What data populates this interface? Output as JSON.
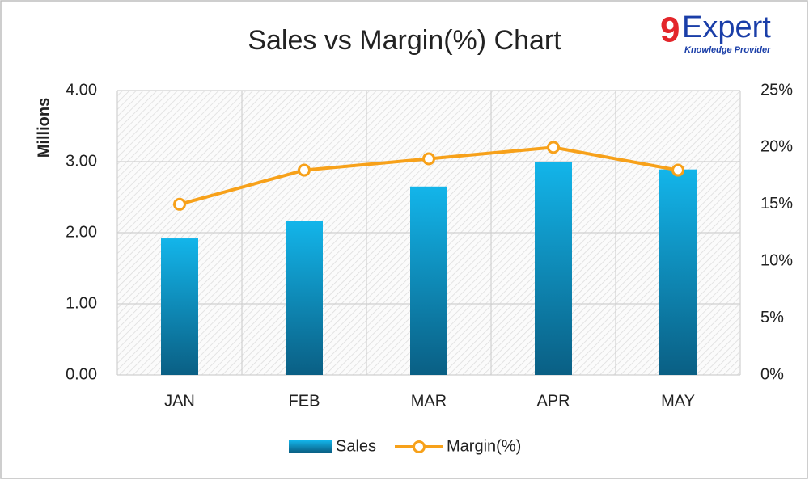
{
  "logo": {
    "digit": "9",
    "word": "Expert",
    "tagline": "Knowledge Provider"
  },
  "chart_data": {
    "type": "combo",
    "title": "Sales vs Margin(%) Chart",
    "y_label": "Millions",
    "categories": [
      "JAN",
      "FEB",
      "MAR",
      "APR",
      "MAY"
    ],
    "series": [
      {
        "name": "Sales",
        "type": "bar",
        "color": "#13b5ea",
        "values": [
          1.92,
          2.16,
          2.65,
          3.0,
          2.89
        ]
      },
      {
        "name": "Margin(%)",
        "type": "line",
        "axis": "y2",
        "color": "#f7a11a",
        "values": [
          15,
          18,
          19,
          20,
          18
        ]
      }
    ],
    "ylim": [
      0,
      4
    ],
    "yticks": [
      {
        "value": 0,
        "label": "0.00"
      },
      {
        "value": 1,
        "label": "1.00"
      },
      {
        "value": 2,
        "label": "2.00"
      },
      {
        "value": 3,
        "label": "3.00"
      },
      {
        "value": 4,
        "label": "4.00"
      }
    ],
    "y2lim": [
      0,
      25
    ],
    "y2ticks": [
      {
        "value": 0,
        "label": "0%"
      },
      {
        "value": 5,
        "label": "5%"
      },
      {
        "value": 10,
        "label": "10%"
      },
      {
        "value": 15,
        "label": "15%"
      },
      {
        "value": 20,
        "label": "20%"
      },
      {
        "value": 25,
        "label": "25%"
      }
    ],
    "grid": true,
    "legend": "bottom"
  }
}
